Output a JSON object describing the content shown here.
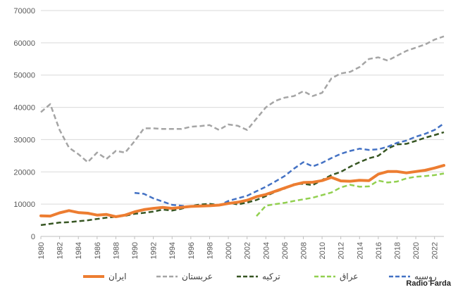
{
  "chart_data": {
    "type": "line",
    "title": "",
    "xlabel": "",
    "ylabel": "",
    "ylim": [
      0,
      70000
    ],
    "xlim": [
      1980,
      2023
    ],
    "yticks": [
      0,
      10000,
      20000,
      30000,
      40000,
      50000,
      60000,
      70000
    ],
    "xticks": [
      1980,
      1982,
      1984,
      1986,
      1988,
      1990,
      1992,
      1994,
      1996,
      1998,
      2000,
      2002,
      2004,
      2006,
      2008,
      2010,
      2012,
      2014,
      2016,
      2018,
      2020,
      2022
    ],
    "grid": true,
    "legend_position": "bottom",
    "series": [
      {
        "name": "ایران",
        "color": "#ED7D31",
        "style": "solid",
        "x": [
          1980,
          1981,
          1982,
          1983,
          1984,
          1985,
          1986,
          1987,
          1988,
          1989,
          1990,
          1991,
          1992,
          1993,
          1994,
          1995,
          1996,
          1997,
          1998,
          1999,
          2000,
          2001,
          2002,
          2003,
          2004,
          2005,
          2006,
          2007,
          2008,
          2009,
          2010,
          2011,
          2012,
          2013,
          2014,
          2015,
          2016,
          2017,
          2018,
          2019,
          2020,
          2021,
          2022,
          2023
        ],
        "values": [
          6400,
          6300,
          7300,
          8000,
          7400,
          7200,
          6600,
          6800,
          6100,
          6600,
          7600,
          8300,
          8700,
          9000,
          8700,
          9000,
          9300,
          9400,
          9500,
          9700,
          10200,
          10600,
          11200,
          12300,
          13000,
          14000,
          15000,
          16000,
          16700,
          16800,
          17300,
          18300,
          17200,
          17100,
          17400,
          17300,
          19300,
          20100,
          20100,
          19700,
          20100,
          20500,
          21200,
          22000
        ]
      },
      {
        "name": "عربستان",
        "color": "#A5A5A5",
        "style": "dashed",
        "x": [
          1980,
          1981,
          1982,
          1983,
          1984,
          1985,
          1986,
          1987,
          1988,
          1989,
          1990,
          1991,
          1992,
          1993,
          1994,
          1995,
          1996,
          1997,
          1998,
          1999,
          2000,
          2001,
          2002,
          2003,
          2004,
          2005,
          2006,
          2007,
          2008,
          2009,
          2010,
          2011,
          2012,
          2013,
          2014,
          2015,
          2016,
          2017,
          2018,
          2019,
          2020,
          2021,
          2022,
          2023
        ],
        "values": [
          38500,
          41000,
          33000,
          27500,
          25500,
          23000,
          26000,
          24000,
          26500,
          26000,
          29500,
          33500,
          33500,
          33300,
          33300,
          33300,
          34000,
          34200,
          34500,
          33000,
          34700,
          34300,
          33000,
          36500,
          40000,
          42000,
          43000,
          43500,
          45000,
          43500,
          44500,
          49000,
          50500,
          51000,
          52500,
          55000,
          55500,
          54500,
          56000,
          57500,
          58500,
          59500,
          61000,
          62000
        ]
      },
      {
        "name": "ترکیه",
        "color": "#375623",
        "style": "dashed",
        "x": [
          1980,
          1981,
          1982,
          1983,
          1984,
          1985,
          1986,
          1987,
          1988,
          1989,
          1990,
          1991,
          1992,
          1993,
          1994,
          1995,
          1996,
          1997,
          1998,
          1999,
          2000,
          2001,
          2002,
          2003,
          2004,
          2005,
          2006,
          2007,
          2008,
          2009,
          2010,
          2011,
          2012,
          2013,
          2014,
          2015,
          2016,
          2017,
          2018,
          2019,
          2020,
          2021,
          2022,
          2023
        ],
        "values": [
          3500,
          3900,
          4300,
          4400,
          4700,
          5000,
          5400,
          5800,
          6100,
          6400,
          7000,
          7300,
          7700,
          8300,
          8000,
          8600,
          9400,
          9900,
          10100,
          9700,
          10500,
          9900,
          10500,
          11300,
          12500,
          13800,
          14800,
          16200,
          16300,
          15900,
          17500,
          19000,
          20000,
          21600,
          23000,
          24200,
          25000,
          27200,
          28500,
          28700,
          29600,
          30600,
          31400,
          32300
        ]
      },
      {
        "name": "عراق",
        "color": "#92D050",
        "style": "dashed",
        "x": [
          2003,
          2004,
          2005,
          2006,
          2007,
          2008,
          2009,
          2010,
          2011,
          2012,
          2013,
          2014,
          2015,
          2016,
          2017,
          2018,
          2019,
          2020,
          2021,
          2022,
          2023
        ],
        "values": [
          6300,
          9500,
          10000,
          10400,
          11000,
          11500,
          12000,
          12800,
          13600,
          15200,
          16000,
          15400,
          15500,
          17300,
          16700,
          17000,
          18000,
          18500,
          18700,
          19000,
          19500
        ]
      },
      {
        "name": "روسیه",
        "color": "#4472C4",
        "style": "dashed",
        "x": [
          1990,
          1991,
          1992,
          1993,
          1994,
          1995,
          1996,
          1997,
          1998,
          1999,
          2000,
          2001,
          2002,
          2003,
          2004,
          2005,
          2006,
          2007,
          2008,
          2009,
          2010,
          2011,
          2012,
          2013,
          2014,
          2015,
          2016,
          2017,
          2018,
          2019,
          2020,
          2021,
          2022,
          2023
        ],
        "values": [
          13500,
          13200,
          11800,
          10800,
          9800,
          9500,
          9200,
          9500,
          9400,
          9600,
          11000,
          11800,
          12600,
          14000,
          15400,
          17000,
          18700,
          21000,
          23000,
          21700,
          22800,
          24300,
          25600,
          26500,
          27200,
          26800,
          27000,
          27800,
          29000,
          29700,
          30900,
          31800,
          33000,
          35000
        ]
      }
    ]
  },
  "credit": "Radio Farda"
}
